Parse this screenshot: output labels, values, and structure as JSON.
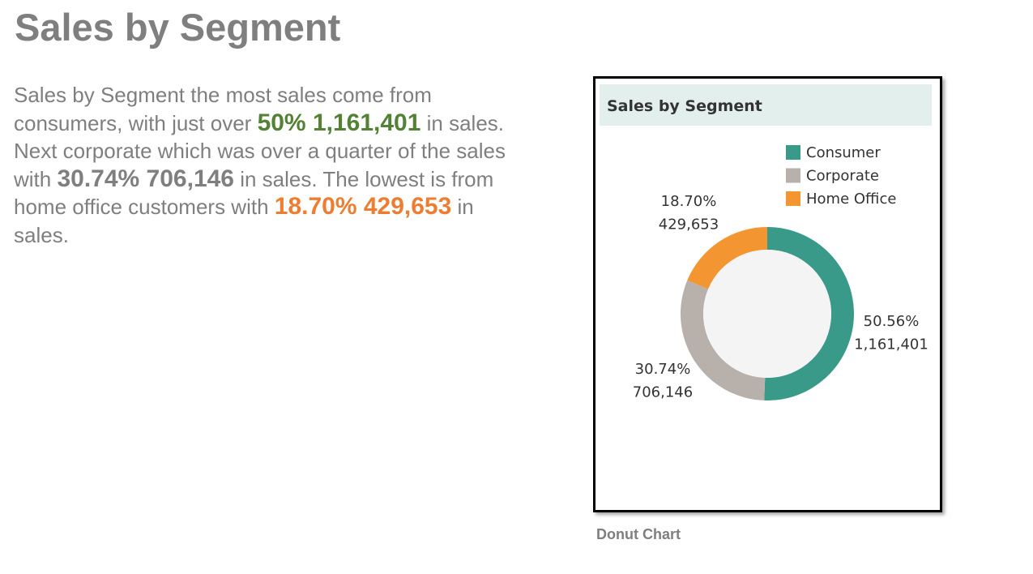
{
  "title": "Sales by Segment",
  "body": {
    "t1": "Sales by Segment the most sales come from consumers, with just over ",
    "h1": "50% 1,161,401",
    "t2": " in sales. Next corporate which was over a quarter of the sales with ",
    "h2": "30.74% 706,146",
    "t3": " in sales. The lowest is from home office customers with ",
    "h3": "18.70% 429,653",
    "t4": " in sales."
  },
  "caption": "Donut Chart",
  "colors": {
    "consumer": "#3a9a8a",
    "corporate": "#b8b0ab",
    "home_office": "#f39530",
    "hole": "#f4f4f4",
    "highlight_green": "#548235",
    "highlight_orange": "#ed7d31"
  },
  "chart_data": {
    "type": "pie",
    "title": "Sales by Segment",
    "legend_position": "top-right",
    "categories": [
      "Consumer",
      "Corporate",
      "Home Office"
    ],
    "values": [
      1161401,
      706146,
      429653
    ],
    "percent_labels": [
      "50.56%",
      "30.74%",
      "18.70%"
    ],
    "value_labels": [
      "1,161,401",
      "706,146",
      "429,653"
    ]
  }
}
